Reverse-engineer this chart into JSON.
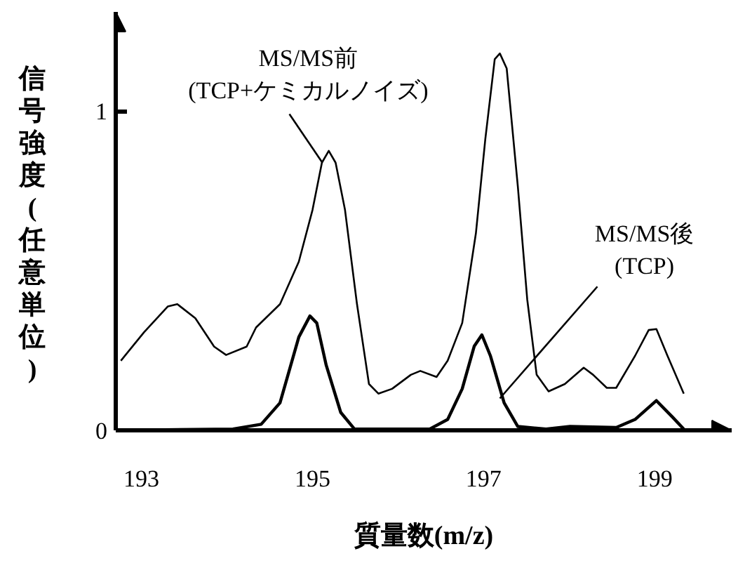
{
  "chart_data": {
    "type": "line",
    "xlabel": "質量数(m/z)",
    "ylabel": "信号強度(任意単位)",
    "xlim": [
      192.7,
      199.9
    ],
    "ylim": [
      0,
      1.31
    ],
    "xticks": [
      193,
      195,
      197,
      199
    ],
    "yticks": [
      0,
      1
    ],
    "grid": false,
    "marker": "none",
    "line_style": "solid",
    "series": [
      {
        "color": "#000000",
        "x": [
          192.76,
          193.03,
          193.31,
          193.42,
          193.63,
          193.85,
          193.99,
          194.23,
          194.34,
          194.62,
          194.84,
          195.0,
          195.11,
          195.19,
          195.27,
          195.38,
          195.52,
          195.66,
          195.77,
          195.93,
          196.15,
          196.26,
          196.45,
          196.58,
          196.75,
          196.91,
          197.02,
          197.13,
          197.19,
          197.27,
          197.4,
          197.51,
          197.62,
          197.76,
          197.95,
          198.17,
          198.28,
          198.44,
          198.55,
          198.77,
          198.93,
          199.02,
          199.15,
          199.34
        ],
        "values": [
          0.218,
          0.307,
          0.388,
          0.395,
          0.351,
          0.262,
          0.236,
          0.262,
          0.322,
          0.395,
          0.528,
          0.69,
          0.838,
          0.875,
          0.838,
          0.69,
          0.395,
          0.145,
          0.115,
          0.13,
          0.174,
          0.186,
          0.167,
          0.218,
          0.336,
          0.617,
          0.912,
          1.162,
          1.18,
          1.133,
          0.764,
          0.41,
          0.174,
          0.122,
          0.145,
          0.196,
          0.174,
          0.133,
          0.133,
          0.233,
          0.314,
          0.317,
          0.233,
          0.115
        ]
      },
      {
        "color": "#000000",
        "x": [
          192.76,
          194.07,
          194.4,
          194.62,
          194.84,
          194.97,
          195.05,
          195.16,
          195.33,
          195.49,
          196.37,
          196.58,
          196.75,
          196.89,
          196.98,
          197.08,
          197.24,
          197.4,
          197.73,
          198.01,
          198.55,
          198.77,
          199.02,
          199.21,
          199.34
        ],
        "values": [
          0,
          0.004,
          0.019,
          0.086,
          0.292,
          0.358,
          0.336,
          0.204,
          0.056,
          0.004,
          0.004,
          0.034,
          0.13,
          0.263,
          0.299,
          0.233,
          0.086,
          0.012,
          0.004,
          0.012,
          0.009,
          0.034,
          0.093,
          0.041,
          0.004
        ]
      }
    ],
    "annotations": [
      {
        "text": "MS/MS前\n(TCP+ケミカルノイズ)",
        "x": 195.11,
        "y": 0.84
      },
      {
        "text": "MS/MS後\n(TCP)",
        "x": 197.19,
        "y": 0.1
      }
    ]
  }
}
